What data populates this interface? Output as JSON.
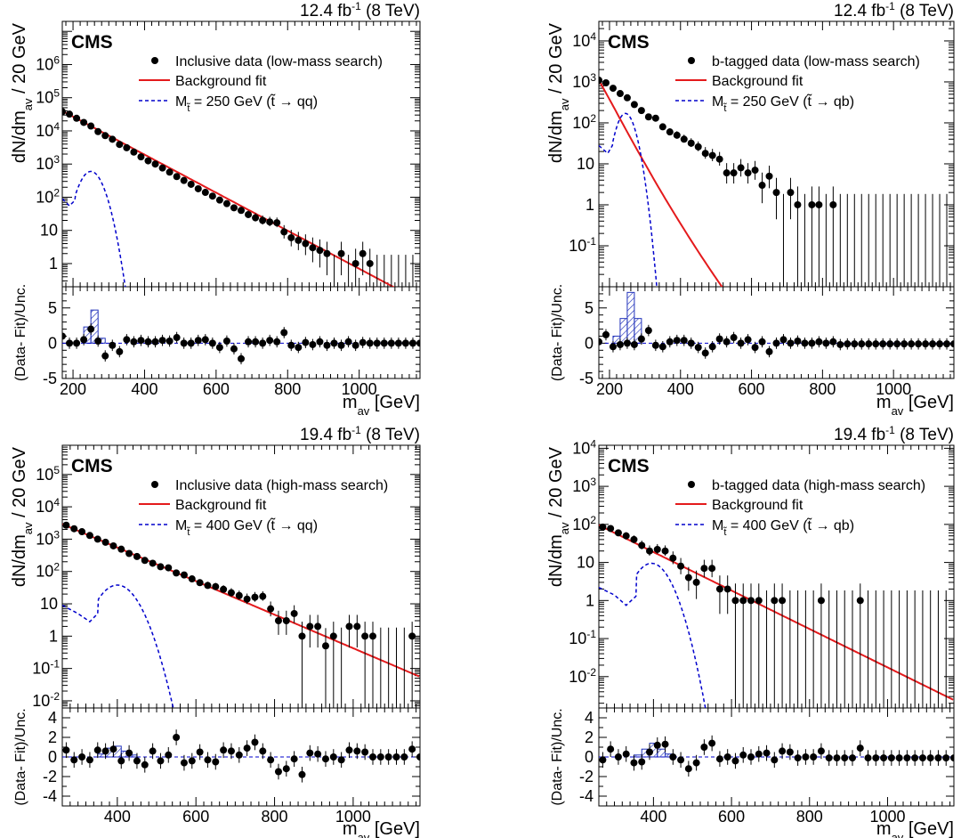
{
  "figure": {
    "cms_label": "CMS",
    "xlabel_base": "m",
    "xlabel_sub": "av",
    "xlabel_unit": " [GeV]"
  },
  "chart_data": [
    {
      "type": "scatter",
      "lumi": "12.4",
      "lumi_unit": "fb",
      "lumi_exp": "-1",
      "energy": "(8 TeV)",
      "title": "12.4 fb-1 (8 TeV)",
      "ylabel": "dN/dm_av / 20 GeV",
      "ratio_ylabel": "(Data- Fit)/Unc.",
      "xlabel": "m_av [GeV]",
      "xlim": [
        170,
        1170
      ],
      "ylim": [
        0.2,
        20000000
      ],
      "ylog": true,
      "yticks": [
        {
          "v": 1,
          "l": "1"
        },
        {
          "v": 10,
          "l": "10"
        },
        {
          "b": "10",
          "e": "2",
          "v": 100
        },
        {
          "b": "10",
          "e": "3",
          "v": 1000
        },
        {
          "b": "10",
          "e": "4",
          "v": 10000
        },
        {
          "b": "10",
          "e": "5",
          "v": 100000
        },
        {
          "b": "10",
          "e": "6",
          "v": 1000000
        }
      ],
      "xticks": [
        200,
        400,
        600,
        800,
        1000
      ],
      "ratio_ylim": [
        -5,
        8
      ],
      "ratio_yticks": [
        -5,
        0,
        5
      ],
      "legend": {
        "data": "Inclusive data (low-mass search)",
        "fit": "Background fit",
        "sig_mass": "= 250 GeV (",
        "sig_decay": "t̃ → qq",
        "sig_close": ")"
      },
      "fit": {
        "a": 40000,
        "x0": 170,
        "mode": "exp",
        "k": 0.0132
      },
      "signal": {
        "center": 250,
        "width": 24,
        "peak": 600,
        "left": [
          [
            170,
            90
          ],
          [
            190,
            55
          ],
          [
            205,
            80
          ]
        ]
      },
      "data_x": [
        170,
        190,
        210,
        230,
        250,
        270,
        290,
        310,
        330,
        350,
        370,
        390,
        410,
        430,
        450,
        470,
        490,
        510,
        530,
        550,
        570,
        590,
        610,
        630,
        650,
        670,
        690,
        710,
        730,
        750,
        770,
        790,
        810,
        830,
        850,
        870,
        890,
        910,
        930,
        950,
        970,
        990,
        1010,
        1030,
        1050,
        1070,
        1090,
        1110,
        1130,
        1150,
        1170
      ],
      "data_y": [
        38000,
        32000,
        24000,
        18000,
        14000,
        9500,
        7200,
        5600,
        3900,
        3100,
        2300,
        1650,
        1250,
        1000,
        760,
        570,
        420,
        320,
        245,
        180,
        140,
        108,
        82,
        64,
        48,
        40,
        30,
        24,
        20,
        18,
        17,
        9,
        6,
        5,
        4,
        3,
        2.5,
        2,
        0,
        2,
        0,
        1,
        2,
        1,
        0,
        0,
        0,
        0,
        0,
        0,
        0
      ],
      "ratio": [
        1.0,
        0.0,
        0.0,
        0.5,
        2.0,
        0.3,
        -1.8,
        -0.3,
        -1.2,
        0.5,
        0.2,
        0.4,
        0.2,
        0.2,
        0.4,
        0.3,
        0.8,
        0.0,
        0.0,
        0.4,
        0.5,
        0.0,
        -0.6,
        0.3,
        -0.8,
        -2.2,
        0.2,
        0.2,
        0.0,
        0.4,
        0.2,
        1.5,
        -0.3,
        -0.6,
        0.1,
        -0.2,
        0.2,
        -0.3,
        0.0,
        -0.3,
        0.2,
        -0.3,
        0.1,
        0.0,
        0.0,
        0.0,
        0.0,
        0.0,
        0.0,
        0.0,
        0.0
      ],
      "hatch": [
        [
          230,
          250,
          2.3
        ],
        [
          250,
          270,
          4.7
        ],
        [
          270,
          290,
          0.7
        ]
      ]
    },
    {
      "type": "scatter",
      "lumi": "12.4",
      "lumi_unit": "fb",
      "lumi_exp": "-1",
      "energy": "(8 TeV)",
      "title": "12.4 fb-1 (8 TeV)",
      "ylabel": "dN/dm_av / 20 GeV",
      "ratio_ylabel": "(Data- Fit)/Unc.",
      "xlabel": "m_av [GeV]",
      "xlim": [
        170,
        1170
      ],
      "ylim": [
        0.01,
        30000
      ],
      "ylog": true,
      "yticks": [
        {
          "b": "10",
          "e": "-1",
          "v": 0.1
        },
        {
          "v": 1,
          "l": "1"
        },
        {
          "v": 10,
          "l": "10"
        },
        {
          "b": "10",
          "e": "2",
          "v": 100
        },
        {
          "b": "10",
          "e": "3",
          "v": 1000
        },
        {
          "b": "10",
          "e": "4",
          "v": 10000
        }
      ],
      "xticks": [
        200,
        400,
        600,
        800,
        1000
      ],
      "ratio_ylim": [
        -5,
        8
      ],
      "ratio_yticks": [
        -5,
        0,
        5
      ],
      "legend": {
        "data": "b-tagged data (low-mass search)",
        "fit": "Background fit",
        "sig_mass": "= 250 GeV (",
        "sig_decay": "t̃ → qb",
        "sig_close": ")"
      },
      "fit": {
        "a": 1100,
        "x0": 170,
        "mode": "powlog",
        "k": 6.0,
        "q": 4.0
      },
      "signal": {
        "center": 245,
        "width": 20,
        "peak": 170,
        "left": [
          [
            170,
            28
          ],
          [
            195,
            18
          ],
          [
            208,
            28
          ]
        ]
      },
      "data_x": [
        170,
        190,
        210,
        230,
        250,
        270,
        290,
        310,
        330,
        350,
        370,
        390,
        410,
        430,
        450,
        470,
        490,
        510,
        530,
        550,
        570,
        590,
        610,
        630,
        650,
        670,
        690,
        710,
        730,
        750,
        770,
        790,
        810,
        830,
        850,
        870,
        890,
        910,
        930,
        950,
        970,
        990,
        1010,
        1030,
        1050,
        1070,
        1090,
        1110,
        1130,
        1150,
        1170
      ],
      "data_y": [
        1100,
        950,
        700,
        520,
        410,
        280,
        200,
        140,
        130,
        80,
        60,
        50,
        40,
        32,
        26,
        18,
        16,
        13,
        6,
        6,
        8,
        6,
        7,
        3,
        5,
        2,
        0,
        2,
        1,
        0,
        1,
        1,
        0,
        1,
        0,
        0,
        0,
        0,
        0,
        0,
        0,
        0,
        0,
        0,
        0,
        0,
        0,
        0,
        0,
        0,
        0
      ],
      "ratio": [
        0.2,
        1.2,
        -0.5,
        -0.2,
        0.0,
        -0.2,
        0.6,
        1.8,
        -0.3,
        -0.5,
        0.2,
        0.4,
        0.4,
        0.0,
        -0.6,
        -1.4,
        -0.5,
        0.6,
        0.2,
        0.8,
        0.0,
        0.5,
        -0.6,
        0.2,
        -1.2,
        0.0,
        0.5,
        0.0,
        0.3,
        0.0,
        0.0,
        0.2,
        0.0,
        0.2,
        -0.2,
        -0.1,
        -0.1,
        -0.1,
        -0.1,
        -0.1,
        -0.1,
        -0.1,
        -0.1,
        -0.1,
        -0.1,
        -0.1,
        -0.1,
        -0.1,
        -0.1,
        -0.1,
        -0.1
      ],
      "hatch": [
        [
          210,
          230,
          1.0
        ],
        [
          230,
          250,
          3.5
        ],
        [
          250,
          270,
          7.2
        ],
        [
          270,
          290,
          3.5
        ]
      ]
    },
    {
      "type": "scatter",
      "lumi": "19.4",
      "lumi_unit": "fb",
      "lumi_exp": "-1",
      "energy": "(8 TeV)",
      "title": "19.4 fb-1 (8 TeV)",
      "ylabel": "dN/dm_av / 20 GeV",
      "ratio_ylabel": "(Data- Fit)/Unc.",
      "xlabel": "m_av [GeV]",
      "xlim": [
        260,
        1170
      ],
      "ylim": [
        0.006,
        800000
      ],
      "ylog": true,
      "yticks": [
        {
          "b": "10",
          "e": "-2",
          "v": 0.01
        },
        {
          "b": "10",
          "e": "-1",
          "v": 0.1
        },
        {
          "v": 1,
          "l": "1"
        },
        {
          "v": 10,
          "l": "10"
        },
        {
          "b": "10",
          "e": "2",
          "v": 100
        },
        {
          "b": "10",
          "e": "3",
          "v": 1000
        },
        {
          "b": "10",
          "e": "4",
          "v": 10000
        },
        {
          "b": "10",
          "e": "5",
          "v": 100000
        }
      ],
      "xticks": [
        400,
        600,
        800,
        1000
      ],
      "ratio_ylim": [
        -5,
        5
      ],
      "ratio_yticks": [
        -4,
        -2,
        0,
        2,
        4
      ],
      "legend": {
        "data": "Inclusive data (high-mass search)",
        "fit": "Background fit",
        "sig_mass": "= 400 GeV (",
        "sig_decay": "t̃ → qq",
        "sig_close": ")"
      },
      "fit": {
        "a": 2600,
        "x0": 270,
        "mode": "exp",
        "k": 0.01195
      },
      "signal": {
        "center": 400,
        "width": 34,
        "peak": 38,
        "left": [
          [
            260,
            9
          ],
          [
            300,
            5
          ],
          [
            330,
            2.8
          ],
          [
            350,
            5
          ]
        ]
      },
      "data_x": [
        270,
        290,
        310,
        330,
        350,
        370,
        390,
        410,
        430,
        450,
        470,
        490,
        510,
        530,
        550,
        570,
        590,
        610,
        630,
        650,
        670,
        690,
        710,
        730,
        750,
        770,
        790,
        810,
        830,
        850,
        870,
        890,
        910,
        930,
        950,
        970,
        990,
        1010,
        1030,
        1050,
        1070,
        1090,
        1110,
        1130,
        1150,
        1170
      ],
      "data_y": [
        2700,
        2100,
        1700,
        1300,
        1000,
        800,
        620,
        490,
        360,
        290,
        220,
        180,
        140,
        130,
        90,
        78,
        59,
        45,
        37,
        34,
        28,
        22,
        18,
        14,
        16,
        17,
        7,
        3,
        3,
        5,
        1,
        2,
        2,
        0.5,
        1,
        0,
        2,
        2,
        1,
        1,
        0,
        0,
        0,
        0,
        1,
        0
      ],
      "ratio": [
        0.7,
        -0.3,
        0.0,
        -0.3,
        0.7,
        0.6,
        0.8,
        -0.4,
        0.4,
        -0.4,
        -0.8,
        0.6,
        -0.4,
        0.2,
        2.0,
        -0.6,
        -0.4,
        0.5,
        -0.3,
        -0.5,
        0.7,
        0.6,
        0.2,
        0.9,
        1.5,
        0.6,
        -0.3,
        -1.5,
        -1.2,
        -0.2,
        -1.8,
        0.4,
        0.3,
        -0.2,
        0.0,
        -0.3,
        0.7,
        0.6,
        0.5,
        0.0,
        0.0,
        0.0,
        0.0,
        0.0,
        0.8,
        0.0
      ],
      "hatch": [
        [
          350,
          370,
          0.3
        ],
        [
          370,
          390,
          0.9
        ],
        [
          390,
          410,
          1.1
        ],
        [
          410,
          430,
          0.6
        ],
        [
          430,
          450,
          0.2
        ]
      ]
    },
    {
      "type": "scatter",
      "lumi": "19.4",
      "lumi_unit": "fb",
      "lumi_exp": "-1",
      "energy": "(8 TeV)",
      "title": "19.4 fb-1 (8 TeV)",
      "ylabel": "dN/dm_av / 20 GeV",
      "ratio_ylabel": "(Data- Fit)/Unc.",
      "xlabel": "m_av [GeV]",
      "xlim": [
        260,
        1170
      ],
      "ylim": [
        0.0015,
        12000
      ],
      "ylog": true,
      "yticks": [
        {
          "b": "10",
          "e": "-2",
          "v": 0.01
        },
        {
          "b": "10",
          "e": "-1",
          "v": 0.1
        },
        {
          "v": 1,
          "l": "1"
        },
        {
          "v": 10,
          "l": "10"
        },
        {
          "b": "10",
          "e": "2",
          "v": 100
        },
        {
          "b": "10",
          "e": "3",
          "v": 1000
        },
        {
          "b": "10",
          "e": "4",
          "v": 10000
        }
      ],
      "xticks": [
        400,
        600,
        800,
        1000
      ],
      "ratio_ylim": [
        -5,
        5
      ],
      "ratio_yticks": [
        -4,
        -2,
        0,
        2,
        4
      ],
      "legend": {
        "data": "b-tagged data (high-mass search)",
        "fit": "Background fit",
        "sig_mass": "= 400 GeV (",
        "sig_decay": "t̃ → qb",
        "sig_close": ")"
      },
      "fit": {
        "a": 85,
        "x0": 270,
        "mode": "exp",
        "k": 0.01163
      },
      "signal": {
        "center": 395,
        "width": 33,
        "peak": 9.5,
        "left": [
          [
            260,
            2.2
          ],
          [
            300,
            1.4
          ],
          [
            330,
            0.75
          ],
          [
            355,
            1.3
          ]
        ]
      },
      "data_x": [
        270,
        290,
        310,
        330,
        350,
        370,
        390,
        410,
        430,
        450,
        470,
        490,
        510,
        530,
        550,
        570,
        590,
        610,
        630,
        650,
        670,
        690,
        710,
        730,
        750,
        770,
        790,
        810,
        830,
        850,
        870,
        890,
        910,
        930,
        950,
        970,
        990,
        1010,
        1030,
        1050,
        1070,
        1090,
        1110,
        1130,
        1150,
        1170
      ],
      "data_y": [
        85,
        78,
        60,
        50,
        40,
        28,
        20,
        22,
        20,
        13,
        8,
        4,
        3,
        7,
        7,
        2,
        2,
        1,
        1,
        1,
        1,
        0,
        1,
        1,
        0,
        0,
        0,
        0,
        1,
        0,
        0,
        0,
        0,
        1,
        0,
        0,
        0,
        0,
        0,
        0,
        0,
        0,
        0,
        0,
        0,
        0
      ],
      "ratio": [
        -0.3,
        0.8,
        0.0,
        0.3,
        -0.6,
        -0.5,
        0.5,
        1.2,
        1.3,
        0.0,
        -0.3,
        -1.2,
        -0.6,
        1.0,
        1.4,
        -0.2,
        0.0,
        -0.4,
        0.2,
        0.0,
        0.3,
        0.4,
        -0.3,
        0.6,
        0.5,
        -0.1,
        0.0,
        0.0,
        0.6,
        -0.1,
        -0.1,
        -0.1,
        -0.1,
        0.9,
        -0.1,
        -0.1,
        -0.1,
        -0.1,
        -0.1,
        -0.1,
        -0.1,
        -0.1,
        -0.1,
        -0.1,
        -0.1,
        -0.1
      ],
      "hatch": [
        [
          350,
          370,
          0.2
        ],
        [
          370,
          390,
          0.8
        ],
        [
          390,
          410,
          1.4
        ],
        [
          410,
          430,
          0.8
        ],
        [
          430,
          450,
          0.3
        ]
      ]
    }
  ]
}
